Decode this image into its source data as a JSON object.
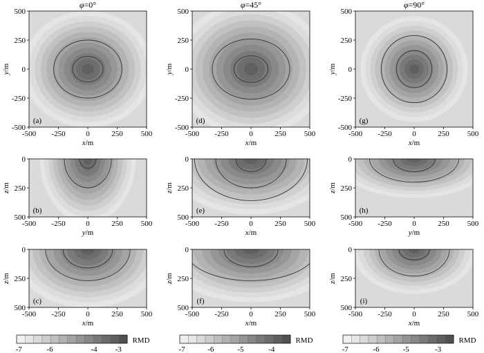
{
  "chart_data": {
    "type": "heatmap",
    "colorbar_label": "RMD",
    "columns": [
      {
        "title": "φ=0°",
        "colorbar_ticks": [
          "-7",
          "-6",
          "-4",
          "-3"
        ],
        "panels": [
          {
            "label": "(a)",
            "xlabel": "x/m",
            "ylabel": "y/m",
            "xlim": [
              -500,
              500
            ],
            "ylim": [
              -500,
              500
            ],
            "xticks": [
              "-500",
              "-250",
              "0",
              "250",
              "500"
            ],
            "yticks": [
              "500",
              "250",
              "0",
              "-250",
              "-500"
            ],
            "view": "plan",
            "peak": [
              0,
              0
            ],
            "spread": [
              230,
              210
            ],
            "contours": [
              [
                130,
                110
              ],
              [
                290,
                250
              ]
            ]
          },
          {
            "label": "(b)",
            "xlabel": "y/m",
            "ylabel": "z/m",
            "xlim": [
              -500,
              500
            ],
            "ylim": [
              0,
              500
            ],
            "xticks": [
              "-500",
              "-250",
              "0",
              "250",
              "500"
            ],
            "yticks": [
              "0",
              "250",
              "500"
            ],
            "view": "section",
            "peak": [
              0,
              0
            ],
            "spread": [
              170,
              230
            ],
            "contours": [
              [
                70,
                80
              ],
              [
                200,
                250
              ]
            ]
          }
        ]
      },
      {
        "title": "φ=45°",
        "colorbar_ticks": [
          "-7",
          "-6",
          "-5",
          "-4"
        ],
        "panels": [
          {
            "label": "(d)",
            "xlabel": "x/m",
            "ylabel": "y/m",
            "xlim": [
              -500,
              500
            ],
            "ylim": [
              -500,
              500
            ],
            "xticks": [
              "-500",
              "-250",
              "0",
              "250",
              "500"
            ],
            "yticks": [
              "500",
              "250",
              "0",
              "-250",
              "-500"
            ],
            "view": "plan",
            "peak": [
              0,
              0
            ],
            "spread": [
              270,
              240
            ],
            "contours": [
              [
                145,
                115
              ],
              [
                330,
                260
              ]
            ]
          },
          {
            "label": "(e)",
            "xlabel": "x/m",
            "ylabel": "z/m",
            "xlim": [
              -500,
              500
            ],
            "ylim": [
              0,
              500
            ],
            "xticks": [
              "-500",
              "-250",
              "0",
              "250",
              "500"
            ],
            "yticks": [
              "0",
              "250",
              "500"
            ],
            "view": "section",
            "peak": [
              0,
              0
            ],
            "spread": [
              300,
              200
            ],
            "contours": [
              [
                130,
                110
              ],
              [
                300,
                250
              ],
              [
                480,
                360
              ]
            ]
          }
        ]
      },
      {
        "title": "φ=90°",
        "colorbar_ticks": [
          "-7",
          "-6",
          "-5",
          "-3"
        ],
        "panels": [
          {
            "label": "(g)",
            "xlabel": "x/m",
            "ylabel": "y/m",
            "xlim": [
              -500,
              500
            ],
            "ylim": [
              -500,
              500
            ],
            "xticks": [
              "-500",
              "-250",
              "0",
              "250",
              "500"
            ],
            "yticks": [
              "500",
              "250",
              "0",
              "-250",
              "-500"
            ],
            "view": "plan",
            "peak": [
              0,
              0
            ],
            "spread": [
              190,
              190
            ],
            "contours": [
              [
                150,
                160
              ],
              [
                280,
                290
              ]
            ]
          },
          {
            "label": "(h)",
            "xlabel": "y/m",
            "ylabel": "z/m",
            "xlim": [
              -500,
              500
            ],
            "ylim": [
              0,
              500
            ],
            "xticks": [
              "-500",
              "-250",
              "0",
              "250",
              "500"
            ],
            "yticks": [
              "0",
              "250",
              "500"
            ],
            "view": "section",
            "peak": [
              0,
              0
            ],
            "spread": [
              280,
              140
            ],
            "contours": [
              [
                180,
                110
              ],
              [
                380,
                200
              ]
            ]
          }
        ]
      }
    ],
    "bottom_row": [
      {
        "label": "(c)",
        "xlabel": "x/m",
        "ylabel": "z/m",
        "xlim": [
          -500,
          500
        ],
        "ylim": [
          0,
          500
        ],
        "xticks": [
          "-500",
          "-250",
          "0",
          "250",
          "500"
        ],
        "yticks": [
          "0",
          "250",
          "500"
        ],
        "view": "section",
        "peak": [
          0,
          0
        ],
        "spread": [
          270,
          210
        ],
        "contours": [
          [
            210,
            160
          ],
          [
            360,
            270
          ]
        ]
      },
      {
        "label": "(f)",
        "xlabel": "x/m",
        "ylabel": "z/m",
        "xlim": [
          -500,
          500
        ],
        "ylim": [
          0,
          500
        ],
        "xticks": [
          "-500",
          "-250",
          "0",
          "250",
          "500"
        ],
        "yticks": [
          "0",
          "250",
          "500"
        ],
        "view": "section",
        "peak": [
          0,
          0
        ],
        "spread": [
          320,
          190
        ],
        "contours": [
          [
            230,
            150
          ],
          [
            560,
            270
          ]
        ]
      },
      {
        "label": "(i)",
        "xlabel": "x/m",
        "ylabel": "z/m",
        "xlim": [
          -500,
          500
        ],
        "ylim": [
          0,
          500
        ],
        "xticks": [
          "-500",
          "-250",
          "0",
          "250",
          "500"
        ],
        "yticks": [
          "0",
          "250",
          "500"
        ],
        "view": "section",
        "peak": [
          0,
          0
        ],
        "spread": [
          220,
          160
        ],
        "contours": [
          [
            130,
            90
          ],
          [
            300,
            230
          ]
        ]
      }
    ],
    "colormap": [
      "#e6e6e6",
      "#dadada",
      "#cdcdcd",
      "#bfbfbf",
      "#b1b1b1",
      "#a3a3a3",
      "#959595",
      "#878787",
      "#797979",
      "#6b6b6b",
      "#5e5e5e"
    ],
    "contour_color": "#333333"
  }
}
